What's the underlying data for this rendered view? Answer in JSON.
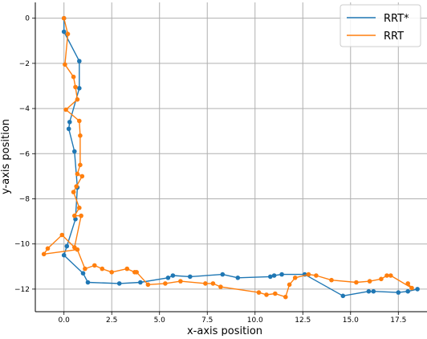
{
  "chart_data": {
    "type": "line",
    "xlabel": "x-axis position",
    "ylabel": "y-axis position",
    "xlim": [
      -1.5,
      19
    ],
    "ylim": [
      -13,
      0.7
    ],
    "x_ticks": [
      "0.0",
      "2.5",
      "5.0",
      "7.5",
      "10.0",
      "12.5",
      "15.0",
      "17.5"
    ],
    "y_ticks": [
      "0",
      "−2",
      "−4",
      "−6",
      "−8",
      "−10",
      "−12"
    ],
    "x_tick_values": [
      0,
      2.5,
      5,
      7.5,
      10,
      12.5,
      15,
      17.5
    ],
    "y_tick_values": [
      0,
      -2,
      -4,
      -6,
      -8,
      -10,
      -12
    ],
    "grid": true,
    "legend_position": "top-right",
    "series": [
      {
        "name": "RRT*",
        "color": "#1f77b4",
        "points": [
          [
            0.0,
            0.0
          ],
          [
            0.0,
            -0.6
          ],
          [
            0.8,
            -1.9
          ],
          [
            0.8,
            -3.1
          ],
          [
            0.3,
            -4.6
          ],
          [
            0.25,
            -4.9
          ],
          [
            0.55,
            -5.9
          ],
          [
            0.7,
            -7.5
          ],
          [
            0.6,
            -8.9
          ],
          [
            0.15,
            -10.1
          ],
          [
            0.0,
            -10.5
          ],
          [
            1.0,
            -11.3
          ],
          [
            1.25,
            -11.7
          ],
          [
            2.9,
            -11.75
          ],
          [
            4.0,
            -11.7
          ],
          [
            5.45,
            -11.5
          ],
          [
            5.7,
            -11.4
          ],
          [
            6.6,
            -11.45
          ],
          [
            8.3,
            -11.35
          ],
          [
            9.1,
            -11.5
          ],
          [
            10.8,
            -11.45
          ],
          [
            11.0,
            -11.4
          ],
          [
            11.4,
            -11.35
          ],
          [
            12.6,
            -11.35
          ],
          [
            14.6,
            -12.3
          ],
          [
            15.95,
            -12.1
          ],
          [
            16.2,
            -12.1
          ],
          [
            17.5,
            -12.15
          ],
          [
            18.0,
            -12.1
          ],
          [
            18.5,
            -12.0
          ]
        ]
      },
      {
        "name": "RRT",
        "color": "#ff7f0e",
        "points": [
          [
            0.0,
            0.0
          ],
          [
            0.2,
            -0.7
          ],
          [
            0.05,
            -2.05
          ],
          [
            0.5,
            -2.6
          ],
          [
            0.6,
            -3.05
          ],
          [
            0.7,
            -3.6
          ],
          [
            0.1,
            -4.05
          ],
          [
            0.8,
            -4.55
          ],
          [
            0.85,
            -5.2
          ],
          [
            0.85,
            -6.5
          ],
          [
            0.7,
            -6.9
          ],
          [
            0.95,
            -7.0
          ],
          [
            0.65,
            -7.45
          ],
          [
            0.5,
            -7.7
          ],
          [
            0.8,
            -8.4
          ],
          [
            0.55,
            -8.75
          ],
          [
            0.9,
            -8.75
          ],
          [
            0.55,
            -10.15
          ],
          [
            -0.1,
            -9.6
          ],
          [
            -0.85,
            -10.2
          ],
          [
            -1.05,
            -10.45
          ],
          [
            0.7,
            -10.25
          ],
          [
            1.1,
            -11.1
          ],
          [
            1.6,
            -10.95
          ],
          [
            2.0,
            -11.1
          ],
          [
            2.5,
            -11.25
          ],
          [
            3.3,
            -11.1
          ],
          [
            3.7,
            -11.25
          ],
          [
            3.8,
            -11.25
          ],
          [
            4.4,
            -11.8
          ],
          [
            5.3,
            -11.75
          ],
          [
            6.1,
            -11.65
          ],
          [
            7.4,
            -11.75
          ],
          [
            7.8,
            -11.75
          ],
          [
            8.2,
            -11.9
          ],
          [
            10.2,
            -12.15
          ],
          [
            10.6,
            -12.25
          ],
          [
            11.05,
            -12.2
          ],
          [
            11.6,
            -12.35
          ],
          [
            11.8,
            -11.8
          ],
          [
            12.1,
            -11.5
          ],
          [
            12.8,
            -11.35
          ],
          [
            13.2,
            -11.4
          ],
          [
            14.0,
            -11.6
          ],
          [
            15.3,
            -11.7
          ],
          [
            16.0,
            -11.65
          ],
          [
            16.6,
            -11.55
          ],
          [
            16.9,
            -11.4
          ],
          [
            17.1,
            -11.4
          ],
          [
            18.2,
            -11.95
          ],
          [
            18.0,
            -11.75
          ]
        ]
      }
    ]
  }
}
